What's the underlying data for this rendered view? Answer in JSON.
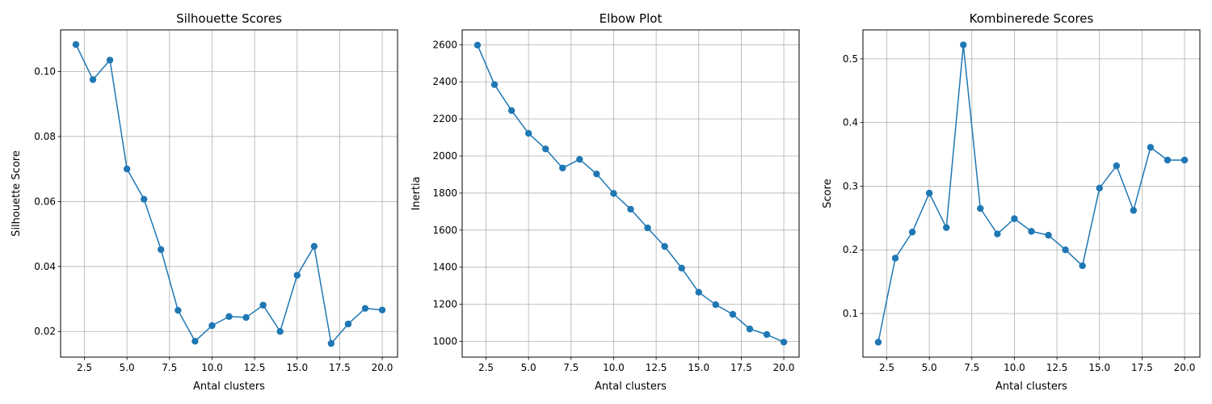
{
  "chart_data": [
    {
      "type": "line",
      "title": "Silhouette Scores",
      "xlabel": "Antal clusters",
      "ylabel": "Silhouette Score",
      "xlim": [
        1.1,
        20.9
      ],
      "ylim": [
        0.0121,
        0.1128
      ],
      "xticks": [
        2.5,
        5.0,
        7.5,
        10.0,
        12.5,
        15.0,
        17.5,
        20.0
      ],
      "xtick_labels": [
        "2.5",
        "5.0",
        "7.5",
        "10.0",
        "12.5",
        "15.0",
        "17.5",
        "20.0"
      ],
      "yticks": [
        0.02,
        0.04,
        0.06,
        0.08,
        0.1
      ],
      "ytick_labels": [
        "0.02",
        "0.04",
        "0.06",
        "0.08",
        "0.10"
      ],
      "grid": true,
      "color": "#1f77b4",
      "x": [
        2,
        3,
        4,
        5,
        6,
        7,
        8,
        9,
        10,
        11,
        12,
        13,
        14,
        15,
        16,
        17,
        18,
        19,
        20
      ],
      "y": [
        0.1083,
        0.0975,
        0.1035,
        0.07,
        0.0607,
        0.0452,
        0.0265,
        0.017,
        0.0218,
        0.0246,
        0.0243,
        0.0281,
        0.02,
        0.0373,
        0.0462,
        0.0163,
        0.0223,
        0.0271,
        0.0266
      ]
    },
    {
      "type": "line",
      "title": "Elbow Plot",
      "xlabel": "Antal clusters",
      "ylabel": "Inertia",
      "xlim": [
        1.1,
        20.9
      ],
      "ylim": [
        915,
        2680
      ],
      "xticks": [
        2.5,
        5.0,
        7.5,
        10.0,
        12.5,
        15.0,
        17.5,
        20.0
      ],
      "xtick_labels": [
        "2.5",
        "5.0",
        "7.5",
        "10.0",
        "12.5",
        "15.0",
        "17.5",
        "20.0"
      ],
      "yticks": [
        1000,
        1200,
        1400,
        1600,
        1800,
        2000,
        2200,
        2400,
        2600
      ],
      "ytick_labels": [
        "1000",
        "1200",
        "1400",
        "1600",
        "1800",
        "2000",
        "2200",
        "2400",
        "2600"
      ],
      "grid": true,
      "color": "#1f77b4",
      "x": [
        2,
        3,
        4,
        5,
        6,
        7,
        8,
        9,
        10,
        11,
        12,
        13,
        14,
        15,
        16,
        17,
        18,
        19,
        20
      ],
      "y": [
        2598,
        2385,
        2245,
        2122,
        2038,
        1935,
        1982,
        1903,
        1798,
        1713,
        1612,
        1512,
        1395,
        1265,
        1198,
        1146,
        1067,
        1037,
        996
      ]
    },
    {
      "type": "line",
      "title": "Kombinerede Scores",
      "xlabel": "Antal clusters",
      "ylabel": "Score",
      "xlim": [
        1.1,
        20.9
      ],
      "ylim": [
        0.0315,
        0.5455
      ],
      "xticks": [
        2.5,
        5.0,
        7.5,
        10.0,
        12.5,
        15.0,
        17.5,
        20.0
      ],
      "xtick_labels": [
        "2.5",
        "5.0",
        "7.5",
        "10.0",
        "12.5",
        "15.0",
        "17.5",
        "20.0"
      ],
      "yticks": [
        0.1,
        0.2,
        0.3,
        0.4,
        0.5
      ],
      "ytick_labels": [
        "0.1",
        "0.2",
        "0.3",
        "0.4",
        "0.5"
      ],
      "grid": true,
      "color": "#1f77b4",
      "x": [
        2,
        3,
        4,
        5,
        6,
        7,
        8,
        9,
        10,
        11,
        12,
        13,
        14,
        15,
        16,
        17,
        18,
        19,
        20
      ],
      "y": [
        0.055,
        0.187,
        0.228,
        0.289,
        0.235,
        0.522,
        0.265,
        0.225,
        0.249,
        0.229,
        0.223,
        0.2,
        0.175,
        0.297,
        0.332,
        0.262,
        0.361,
        0.341,
        0.341
      ]
    }
  ]
}
